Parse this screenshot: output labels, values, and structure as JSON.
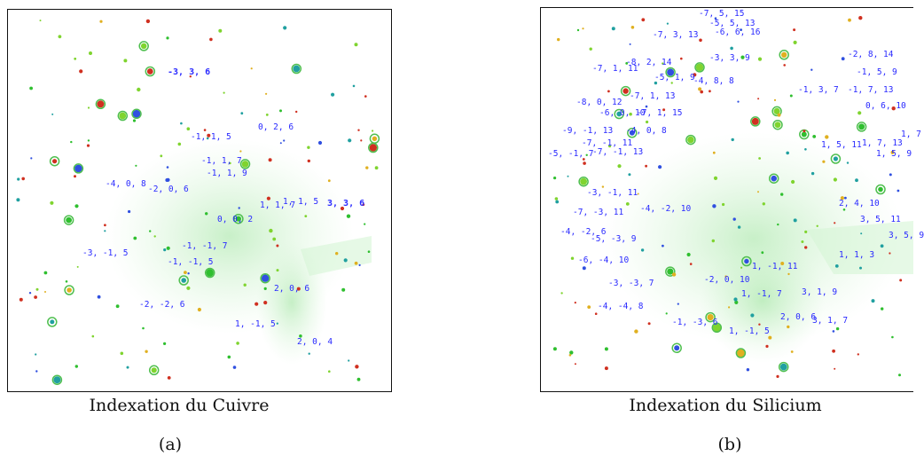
{
  "figure": {
    "panel_a": {
      "caption": "Indexation du Cuivre",
      "sublabel": "(a)",
      "labels": [
        "-3, 3, 6",
        "0, 2, 6",
        "-1, 1, 5",
        "-1, 1, 7",
        "-1, 1, 9",
        "-4, 0, 8",
        "-2, 0, 6",
        "1, 1, 7",
        "1, 1, 5",
        "3, 3, 6",
        "0, 0, 2",
        "-1, -1, 7",
        "-3, -1, 5",
        "-1, -1, 5",
        "2, 0, 6",
        "-2, -2, 6",
        "1, -1, 5",
        "2, 0, 4"
      ]
    },
    "panel_b": {
      "caption": "Indexation du Silicium",
      "sublabel": "(b)",
      "labels": [
        "-7, 5, 15",
        "-5, 5, 13",
        "-6, 6, 16",
        "-7, 3, 13",
        "-5, 1, 9",
        "-4, 8, 8",
        "-8, 2, 14",
        "-7, 1, 11",
        "-3, 3, 9",
        "-2, 8, 14",
        "-1, 5, 9",
        "-7, 1, 13",
        "-8, 0, 12",
        "-6, 0, 10",
        "-7, 1, 15",
        "-1, 3, 7",
        "-1, 7, 13",
        "0, 6, 10",
        "-9, -1, 13",
        "-4, 0, 8",
        "-7, -1, 11",
        "-5, -1, 7",
        "-7, -1, 13",
        "-3, -1, 11",
        "-4, -2, 10",
        "-7, -3, 11",
        "-4, -2, 6",
        "-5, -3, 9",
        "-6, -4, 10",
        "-3, -3, 7",
        "-4, -4, 8",
        "-1, -3, 6",
        "-2, 0, 10",
        "1, -1, 11",
        "1, -1, 7",
        "3, 1, 9",
        "2, 0, 6",
        "3, 1, 7",
        "1, -1, 5",
        "2, 4, 10",
        "3, 5, 11",
        "3, 5, 9",
        "1, 1, 3",
        "1, 5, 11",
        "1, 5, 9",
        "1, 7, 13",
        "1, 7"
      ]
    }
  }
}
